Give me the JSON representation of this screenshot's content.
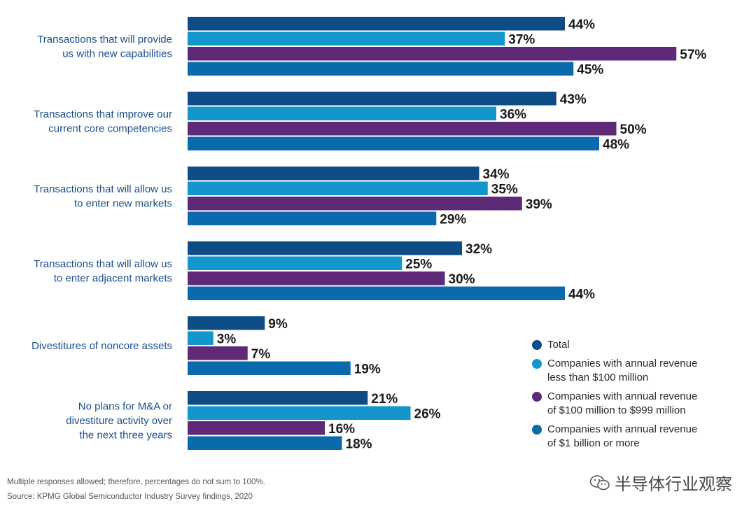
{
  "chart_data": {
    "type": "bar",
    "orientation": "horizontal",
    "categories": [
      "Transactions that will provide\nus with new capabilities",
      "Transactions that improve our\ncurrent core competencies",
      "Transactions that will allow us\nto enter new markets",
      "Transactions that will allow us\nto enter adjacent markets",
      "Divestitures of noncore assets",
      "No plans for M&A or\ndivestiture activity over\nthe next three years"
    ],
    "series": [
      {
        "name": "Total",
        "color": "#0d4c85",
        "values": [
          44,
          43,
          34,
          32,
          9,
          21
        ],
        "labels": [
          "44%",
          "43%",
          "34%",
          "32%",
          "9%",
          "21%"
        ]
      },
      {
        "name": "Companies with annual revenue\nless than $100 million",
        "color": "#1296cc",
        "values": [
          37,
          36,
          35,
          25,
          3,
          26
        ],
        "labels": [
          "37%",
          "36%",
          "35%",
          "25%",
          "3%",
          "26%"
        ]
      },
      {
        "name": "Companies with annual revenue\nof $100 million to $999 million",
        "color": "#5e2a78",
        "values": [
          57,
          50,
          39,
          30,
          7,
          16
        ],
        "labels": [
          "57%",
          "50%",
          "39%",
          "30%",
          "7%",
          "16%"
        ]
      },
      {
        "name": "Companies with annual revenue\nof $1 billion or more",
        "color": "#0a6aab",
        "values": [
          45,
          48,
          29,
          44,
          19,
          18
        ],
        "labels": [
          "45%",
          "48%",
          "29%",
          "44%",
          "19%",
          "18%"
        ]
      }
    ],
    "xlim": [
      0,
      100
    ],
    "grid": false,
    "legend_position": "right-bottom"
  },
  "notes": {
    "line1": "Multiple responses allowed; therefore, percentages do not sum to 100%.",
    "line2": "Source: KPMG Global Semiconductor Industry Survey findings, 2020"
  },
  "watermark": {
    "text": "半导体行业观察",
    "icon": "wechat-icon"
  }
}
